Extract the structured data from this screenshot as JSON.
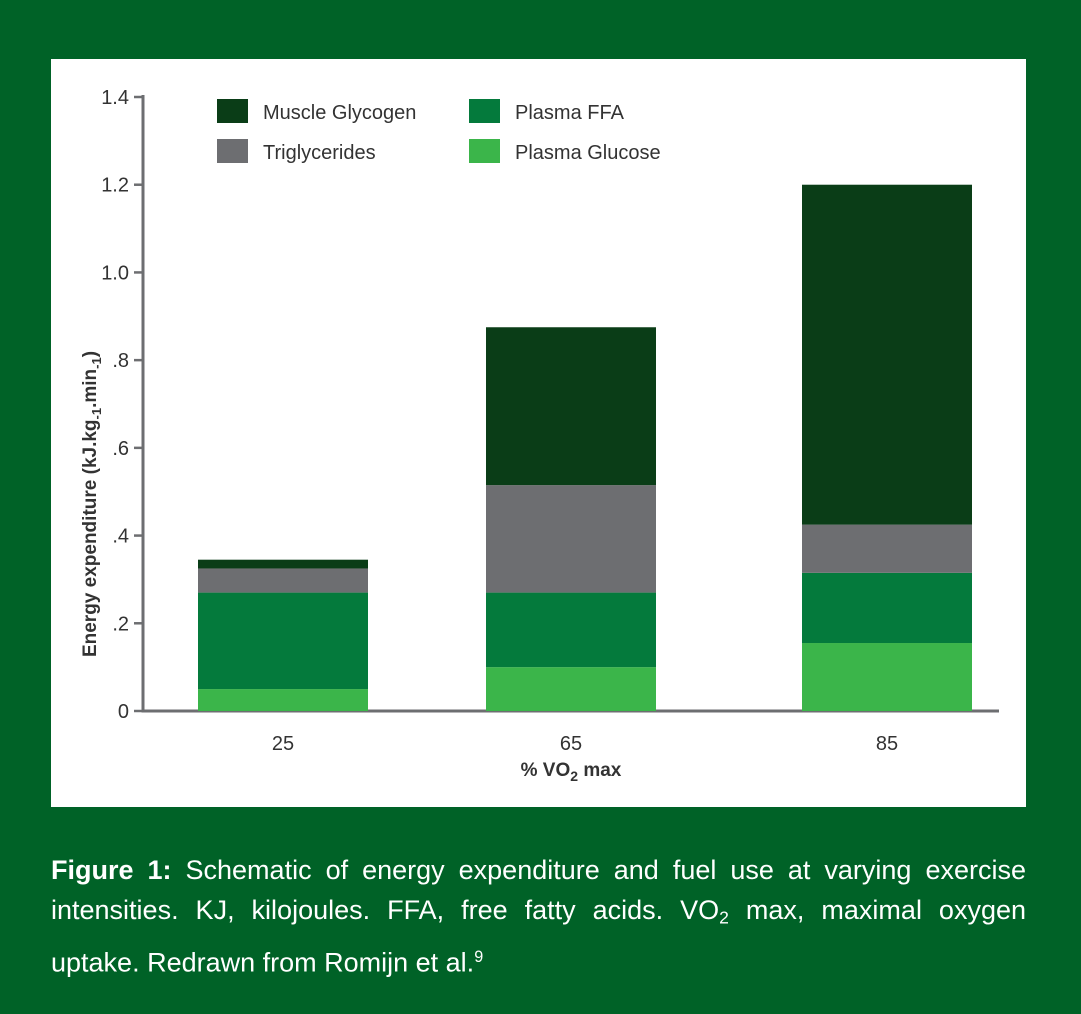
{
  "chart_data": {
    "type": "bar",
    "stacked": true,
    "categories": [
      "25",
      "65",
      "85"
    ],
    "series": [
      {
        "name": "Plasma Glucose",
        "color": "#3bb54a",
        "values": [
          0.05,
          0.1,
          0.155
        ]
      },
      {
        "name": "Plasma FFA",
        "color": "#047a3c",
        "values": [
          0.22,
          0.17,
          0.16
        ]
      },
      {
        "name": "Triglycerides",
        "color": "#6d6e71",
        "values": [
          0.055,
          0.245,
          0.11
        ]
      },
      {
        "name": "Muscle Glycogen",
        "color": "#0a3d17",
        "values": [
          0.02,
          0.36,
          0.775
        ]
      }
    ],
    "legend_order": [
      "Muscle Glycogen",
      "Plasma FFA",
      "Triglycerides",
      "Plasma Glucose"
    ],
    "legend_position": "top",
    "ylim": [
      0,
      1.4
    ],
    "yticks": [
      0,
      0.2,
      0.4,
      0.6,
      0.8,
      1.0,
      1.2,
      1.4
    ],
    "ytick_labels": [
      "0",
      ".2",
      ".4",
      ".6",
      ".8",
      "1.0",
      "1.2",
      "1.4"
    ],
    "ylabel": {
      "main": "Energy expenditure (kJ.kg",
      "sub1": "-1",
      "mid": ".min",
      "sub2": "-1",
      "end": ")"
    },
    "xlabel": {
      "pre": "% VO",
      "sub": "2",
      "post": " max"
    },
    "grid": false,
    "colors": {
      "axis": "#6d6e71",
      "text": "#333333"
    }
  },
  "caption": {
    "label": "Figure 1:",
    "part1": " Schematic of energy expenditure and fuel use at varying exercise intensities. KJ, kilojoules. FFA, free fatty acids. VO",
    "sub": "2",
    "part2": " max, maximal oxygen uptake. Redrawn from Romijn et al.",
    "sup": "9"
  },
  "colors": {
    "page_background": "#006227",
    "panel_background": "#ffffff"
  }
}
